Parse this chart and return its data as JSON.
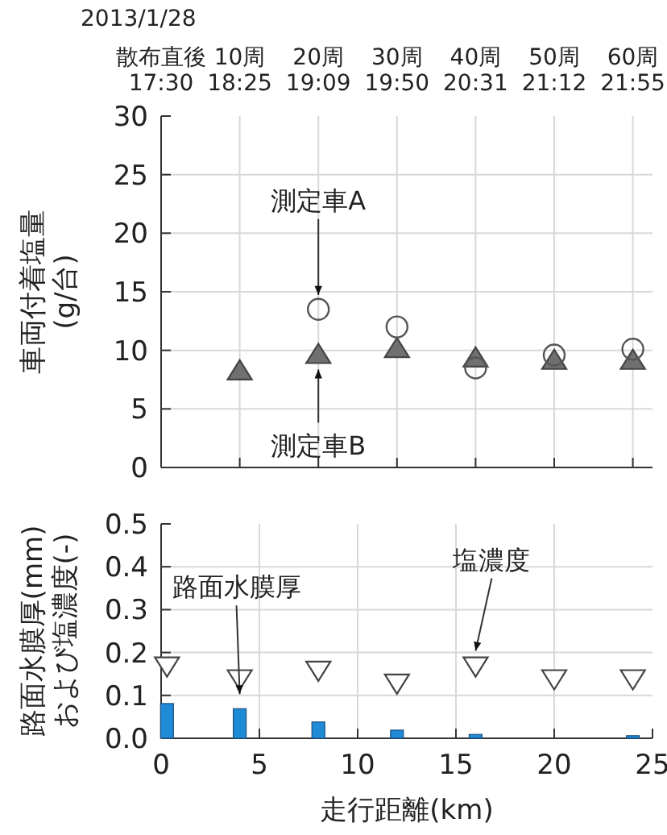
{
  "chart_data": [
    {
      "type": "scatter",
      "ylabel": "車両付着塩量\n(g/台)",
      "annotations": [
        "2013/1/28"
      ],
      "categories": [
        "散布直後\n17:30",
        "10周\n18:25",
        "20周\n19:09",
        "30周\n19:50",
        "40周\n20:31",
        "50周\n21:12",
        "60周\n21:55"
      ],
      "ylim": [
        0,
        30
      ],
      "yticks": [
        0,
        5,
        10,
        15,
        20,
        25,
        30
      ],
      "grid": true,
      "series": [
        {
          "name": "測定車A",
          "marker": "circle",
          "color": "#555555",
          "values": [
            null,
            null,
            13.5,
            12.0,
            8.5,
            9.6,
            10.1
          ]
        },
        {
          "name": "測定車B",
          "marker": "triangle",
          "color": "#707070",
          "values": [
            null,
            8.2,
            9.6,
            10.1,
            9.3,
            9.1,
            9.1
          ]
        }
      ]
    },
    {
      "type": "bar",
      "ylabel": "路面水膜厚(mm)\nおよび塩濃度(-)",
      "xlabel": "走行距離(km)",
      "xlim": [
        0,
        25
      ],
      "xticks": [
        0,
        5,
        10,
        15,
        20,
        25
      ],
      "ylim": [
        0,
        0.5
      ],
      "yticks": [
        {
          "value": 0,
          "label": "0.0"
        },
        0.1,
        0.2,
        0.3,
        0.4,
        0.5
      ],
      "grid": true,
      "series": [
        {
          "name": "路面水膜厚",
          "color": "#1f8ad6",
          "x": [
            0.3,
            4,
            8,
            12,
            16,
            20,
            24
          ],
          "values": [
            0.081,
            0.069,
            0.038,
            0.019,
            0.009,
            null,
            0.006
          ]
        },
        {
          "name": "塩濃度",
          "type": "scatter",
          "marker": "triangle",
          "color": "#444444",
          "x": [
            0.3,
            4,
            8,
            12,
            16,
            20,
            24
          ],
          "values": [
            0.17,
            0.14,
            0.16,
            0.13,
            0.17,
            0.14,
            0.14
          ]
        }
      ]
    }
  ]
}
